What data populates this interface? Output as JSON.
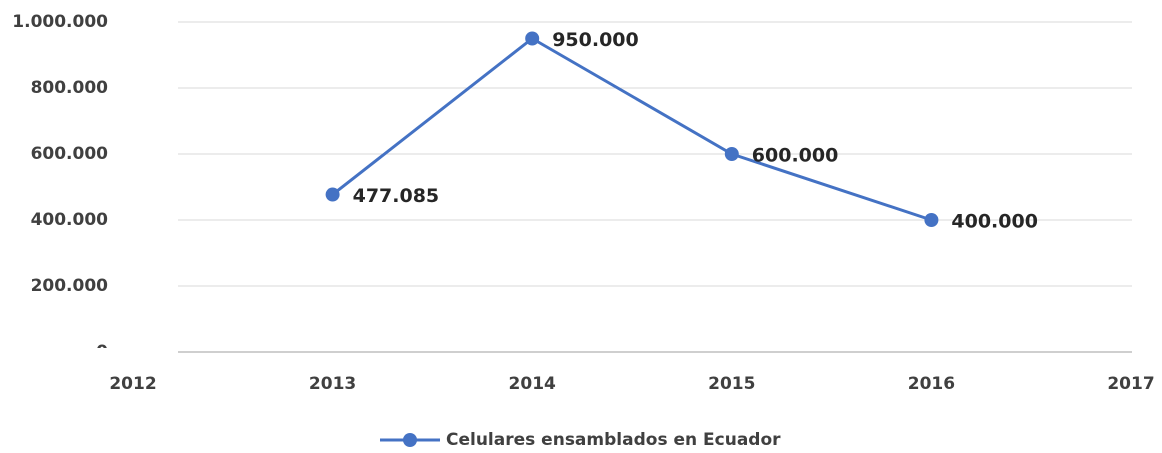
{
  "chart_data": {
    "type": "line",
    "x": [
      2013,
      2014,
      2015,
      2016
    ],
    "series": [
      {
        "name": "Celulares ensamblados en Ecuador",
        "color": "#4472c4",
        "values": [
          477085,
          950000,
          600000,
          400000
        ],
        "value_labels": [
          "477.085",
          "950.000",
          "600.000",
          "400.000"
        ]
      }
    ],
    "xlim": [
      2012,
      2017
    ],
    "xticks": [
      2012,
      2013,
      2014,
      2015,
      2016,
      2017
    ],
    "ylim": [
      0,
      1000000
    ],
    "yticks": [
      0,
      {
        "value": 200000,
        "label": "200.000"
      },
      {
        "value": 400000,
        "label": "400.000"
      },
      {
        "value": 600000,
        "label": "600.000"
      },
      {
        "value": 800000,
        "label": "800.000"
      },
      {
        "value": 1000000,
        "label": "1.000.000"
      }
    ],
    "grid": true,
    "legend": "bottom"
  }
}
